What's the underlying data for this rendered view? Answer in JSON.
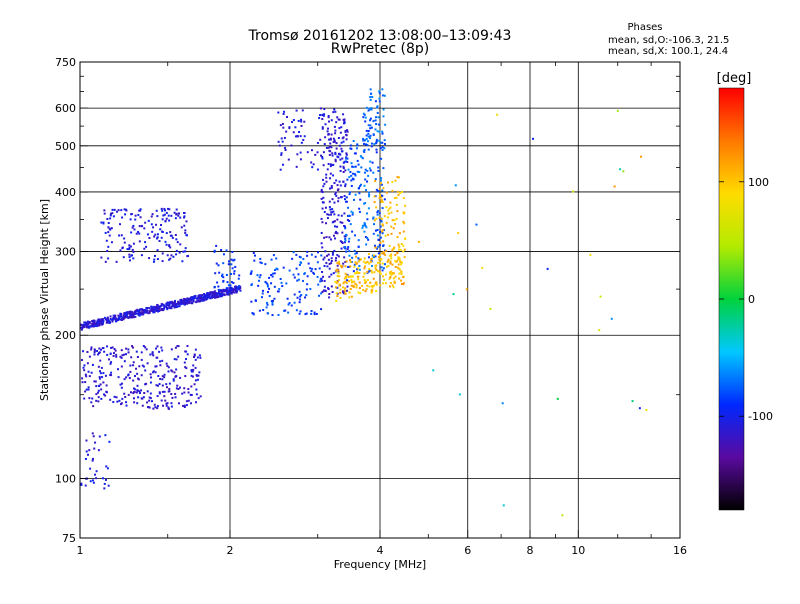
{
  "chart_data": {
    "type": "scatter",
    "title": "Tromsø 20161202 13:08:00–13:09:43",
    "subtitle": "RwPretec (8p)",
    "xlabel": "Frequency [MHz]",
    "ylabel": "Stationary phase Virtual Height [km]",
    "x_scale": "log",
    "y_scale": "log",
    "xlim": [
      1,
      16
    ],
    "ylim": [
      75,
      750
    ],
    "x_ticks": [
      1,
      2,
      4,
      6,
      8,
      10,
      16
    ],
    "x_tick_labels": [
      "1",
      "2",
      "4",
      "6",
      "8",
      "10",
      "16"
    ],
    "x_grid": [
      2,
      4,
      6,
      8,
      10
    ],
    "y_ticks": [
      75,
      100,
      200,
      300,
      400,
      500,
      600,
      750
    ],
    "y_tick_labels": [
      "75",
      "100",
      "200",
      "300",
      "400",
      "500",
      "600",
      "750"
    ],
    "y_grid": [
      100,
      200,
      300,
      400,
      500,
      600
    ],
    "stats": {
      "heading": "Phases",
      "line_o": "mean, sd,O:-106.3, 21.5",
      "line_x": "mean, sd,X: 100.1, 24.4"
    },
    "colorbar": {
      "label": "[deg]",
      "range": [
        -180,
        180
      ],
      "ticks": [
        100,
        0,
        -100
      ],
      "tick_labels": [
        "100",
        "0",
        "-100"
      ],
      "colors": [
        "#000000",
        "#5a0aa0",
        "#0028ff",
        "#00c8ff",
        "#00d23c",
        "#b4eb00",
        "#ffdc00",
        "#ff7800",
        "#ff0000"
      ]
    },
    "point_marker_size": 2,
    "point_groups": [
      {
        "name": "F-low-band",
        "cx": [
          1.0,
          2.1
        ],
        "y": [
          205,
          255
        ],
        "n": 700,
        "phase": [
          -125,
          -95
        ],
        "shape": "rise",
        "amp": 0.85
      },
      {
        "name": "F-upper-band",
        "cx": [
          1.1,
          1.65
        ],
        "y": [
          285,
          370
        ],
        "n": 180,
        "phase": [
          -120,
          -95
        ],
        "shape": "flat"
      },
      {
        "name": "E-band",
        "cx": [
          1.0,
          1.75
        ],
        "y": [
          140,
          190
        ],
        "n": 330,
        "phase": [
          -125,
          -100
        ],
        "shape": "flat"
      },
      {
        "name": "low-E",
        "cx": [
          1.0,
          1.15
        ],
        "y": [
          95,
          125
        ],
        "n": 35,
        "phase": [
          -120,
          -95
        ],
        "shape": "flat"
      },
      {
        "name": "mid-cluster",
        "cx": [
          1.85,
          2.1
        ],
        "y": [
          245,
          310
        ],
        "n": 45,
        "phase": [
          -100,
          -75
        ],
        "shape": "flat"
      },
      {
        "name": "F1-blue",
        "cx": [
          2.2,
          3.05
        ],
        "y": [
          220,
          300
        ],
        "n": 140,
        "phase": [
          -100,
          -70
        ],
        "shape": "flat"
      },
      {
        "name": "cusp-purple",
        "cx": [
          3.05,
          3.45
        ],
        "y": [
          240,
          600
        ],
        "n": 240,
        "phase": [
          -125,
          -100
        ],
        "shape": "vertical"
      },
      {
        "name": "F2-trace",
        "cx": [
          2.5,
          3.4
        ],
        "y": [
          445,
          600
        ],
        "n": 90,
        "phase": [
          -120,
          -95
        ],
        "shape": "flat"
      },
      {
        "name": "X-blue",
        "cx": [
          3.4,
          4.1
        ],
        "y": [
          270,
          520
        ],
        "n": 210,
        "phase": [
          -95,
          -60
        ],
        "shape": "vertical"
      },
      {
        "name": "X-blue-high",
        "cx": [
          3.7,
          4.1
        ],
        "y": [
          500,
          660
        ],
        "n": 70,
        "phase": [
          -90,
          -55
        ],
        "shape": "vertical"
      },
      {
        "name": "X-orange",
        "cx": [
          3.25,
          4.5
        ],
        "y": [
          235,
          310
        ],
        "n": 230,
        "phase": [
          85,
          125
        ],
        "shape": "rise",
        "amp": 0.3
      },
      {
        "name": "X-orange-up",
        "cx": [
          3.9,
          4.5
        ],
        "y": [
          300,
          430
        ],
        "n": 80,
        "phase": [
          85,
          120
        ],
        "shape": "vertical"
      },
      {
        "name": "scatter-high-f",
        "cx": [
          4.5,
          14
        ],
        "y": [
          80,
          600
        ],
        "n": 30,
        "phase": [
          -110,
          130
        ],
        "shape": "flat"
      }
    ]
  }
}
